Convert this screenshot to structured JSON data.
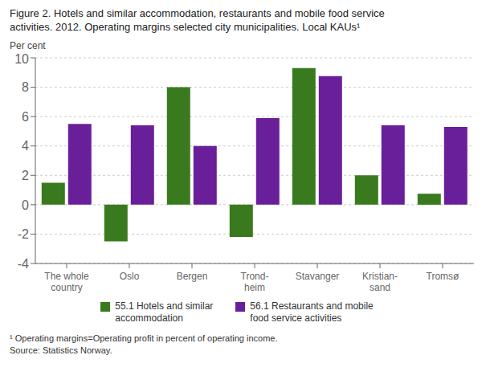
{
  "chart_data": {
    "type": "bar",
    "title": "Figure 2. Hotels and similar accommodation, restaurants and mobile food service\nactivities. 2012. Operating margins selected city municipalities. Local KAUs¹",
    "ylabel": "Per cent",
    "categories": [
      "The whole\ncountry",
      "Oslo",
      "Bergen",
      "Trond-\nheim",
      "Stavanger",
      "Kristian-\nsand",
      "Tromsø"
    ],
    "series": [
      {
        "name": "55.1 Hotels and similar\naccommodation",
        "color": "#3a7a1e",
        "values": [
          1.5,
          -2.5,
          8.0,
          -2.2,
          9.3,
          2.0,
          0.75
        ]
      },
      {
        "name": "56.1 Restaurants and mobile\nfood service activities",
        "color": "#6a1f9a",
        "values": [
          5.5,
          5.4,
          4.0,
          5.9,
          8.75,
          5.4,
          5.3
        ]
      }
    ],
    "ylim": [
      -4,
      10
    ],
    "yticks": [
      -4,
      -2,
      0,
      2,
      4,
      6,
      8,
      10
    ],
    "grid": true,
    "legend": "bottom",
    "annotations": [
      "¹ Operating margins=Operating profit in percent of operating income.\nSource: Statistics Norway."
    ]
  }
}
